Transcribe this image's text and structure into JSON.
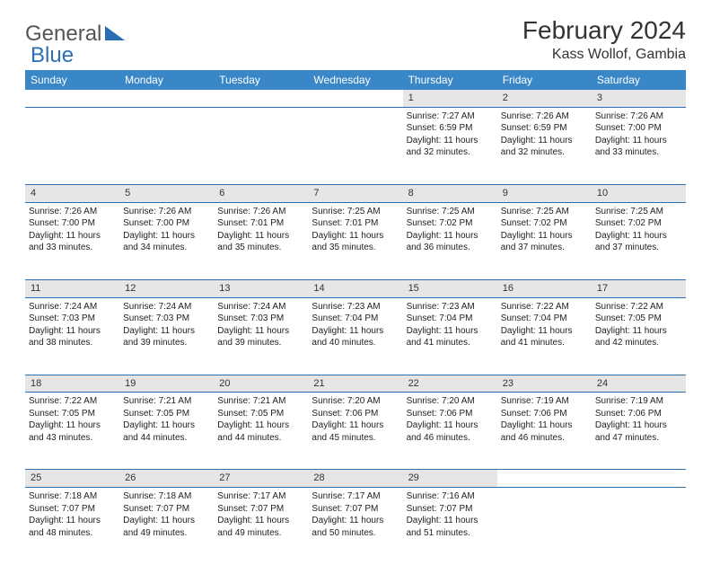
{
  "header": {
    "logo_general": "General",
    "logo_blue": "Blue",
    "month_title": "February 2024",
    "location": "Kass Wollof, Gambia"
  },
  "colors": {
    "header_bg": "#3a87c8",
    "header_text": "#ffffff",
    "daynum_bg": "#e6e6e6",
    "row_border": "#2a6fb5",
    "text": "#222222",
    "logo_gray": "#555555",
    "logo_blue": "#2a6fb5"
  },
  "weekdays": [
    "Sunday",
    "Monday",
    "Tuesday",
    "Wednesday",
    "Thursday",
    "Friday",
    "Saturday"
  ],
  "weeks": [
    {
      "nums": [
        "",
        "",
        "",
        "",
        "1",
        "2",
        "3"
      ],
      "cells": [
        null,
        null,
        null,
        null,
        {
          "sunrise": "Sunrise: 7:27 AM",
          "sunset": "Sunset: 6:59 PM",
          "day1": "Daylight: 11 hours",
          "day2": "and 32 minutes."
        },
        {
          "sunrise": "Sunrise: 7:26 AM",
          "sunset": "Sunset: 6:59 PM",
          "day1": "Daylight: 11 hours",
          "day2": "and 32 minutes."
        },
        {
          "sunrise": "Sunrise: 7:26 AM",
          "sunset": "Sunset: 7:00 PM",
          "day1": "Daylight: 11 hours",
          "day2": "and 33 minutes."
        }
      ]
    },
    {
      "nums": [
        "4",
        "5",
        "6",
        "7",
        "8",
        "9",
        "10"
      ],
      "cells": [
        {
          "sunrise": "Sunrise: 7:26 AM",
          "sunset": "Sunset: 7:00 PM",
          "day1": "Daylight: 11 hours",
          "day2": "and 33 minutes."
        },
        {
          "sunrise": "Sunrise: 7:26 AM",
          "sunset": "Sunset: 7:00 PM",
          "day1": "Daylight: 11 hours",
          "day2": "and 34 minutes."
        },
        {
          "sunrise": "Sunrise: 7:26 AM",
          "sunset": "Sunset: 7:01 PM",
          "day1": "Daylight: 11 hours",
          "day2": "and 35 minutes."
        },
        {
          "sunrise": "Sunrise: 7:25 AM",
          "sunset": "Sunset: 7:01 PM",
          "day1": "Daylight: 11 hours",
          "day2": "and 35 minutes."
        },
        {
          "sunrise": "Sunrise: 7:25 AM",
          "sunset": "Sunset: 7:02 PM",
          "day1": "Daylight: 11 hours",
          "day2": "and 36 minutes."
        },
        {
          "sunrise": "Sunrise: 7:25 AM",
          "sunset": "Sunset: 7:02 PM",
          "day1": "Daylight: 11 hours",
          "day2": "and 37 minutes."
        },
        {
          "sunrise": "Sunrise: 7:25 AM",
          "sunset": "Sunset: 7:02 PM",
          "day1": "Daylight: 11 hours",
          "day2": "and 37 minutes."
        }
      ]
    },
    {
      "nums": [
        "11",
        "12",
        "13",
        "14",
        "15",
        "16",
        "17"
      ],
      "cells": [
        {
          "sunrise": "Sunrise: 7:24 AM",
          "sunset": "Sunset: 7:03 PM",
          "day1": "Daylight: 11 hours",
          "day2": "and 38 minutes."
        },
        {
          "sunrise": "Sunrise: 7:24 AM",
          "sunset": "Sunset: 7:03 PM",
          "day1": "Daylight: 11 hours",
          "day2": "and 39 minutes."
        },
        {
          "sunrise": "Sunrise: 7:24 AM",
          "sunset": "Sunset: 7:03 PM",
          "day1": "Daylight: 11 hours",
          "day2": "and 39 minutes."
        },
        {
          "sunrise": "Sunrise: 7:23 AM",
          "sunset": "Sunset: 7:04 PM",
          "day1": "Daylight: 11 hours",
          "day2": "and 40 minutes."
        },
        {
          "sunrise": "Sunrise: 7:23 AM",
          "sunset": "Sunset: 7:04 PM",
          "day1": "Daylight: 11 hours",
          "day2": "and 41 minutes."
        },
        {
          "sunrise": "Sunrise: 7:22 AM",
          "sunset": "Sunset: 7:04 PM",
          "day1": "Daylight: 11 hours",
          "day2": "and 41 minutes."
        },
        {
          "sunrise": "Sunrise: 7:22 AM",
          "sunset": "Sunset: 7:05 PM",
          "day1": "Daylight: 11 hours",
          "day2": "and 42 minutes."
        }
      ]
    },
    {
      "nums": [
        "18",
        "19",
        "20",
        "21",
        "22",
        "23",
        "24"
      ],
      "cells": [
        {
          "sunrise": "Sunrise: 7:22 AM",
          "sunset": "Sunset: 7:05 PM",
          "day1": "Daylight: 11 hours",
          "day2": "and 43 minutes."
        },
        {
          "sunrise": "Sunrise: 7:21 AM",
          "sunset": "Sunset: 7:05 PM",
          "day1": "Daylight: 11 hours",
          "day2": "and 44 minutes."
        },
        {
          "sunrise": "Sunrise: 7:21 AM",
          "sunset": "Sunset: 7:05 PM",
          "day1": "Daylight: 11 hours",
          "day2": "and 44 minutes."
        },
        {
          "sunrise": "Sunrise: 7:20 AM",
          "sunset": "Sunset: 7:06 PM",
          "day1": "Daylight: 11 hours",
          "day2": "and 45 minutes."
        },
        {
          "sunrise": "Sunrise: 7:20 AM",
          "sunset": "Sunset: 7:06 PM",
          "day1": "Daylight: 11 hours",
          "day2": "and 46 minutes."
        },
        {
          "sunrise": "Sunrise: 7:19 AM",
          "sunset": "Sunset: 7:06 PM",
          "day1": "Daylight: 11 hours",
          "day2": "and 46 minutes."
        },
        {
          "sunrise": "Sunrise: 7:19 AM",
          "sunset": "Sunset: 7:06 PM",
          "day1": "Daylight: 11 hours",
          "day2": "and 47 minutes."
        }
      ]
    },
    {
      "nums": [
        "25",
        "26",
        "27",
        "28",
        "29",
        "",
        ""
      ],
      "cells": [
        {
          "sunrise": "Sunrise: 7:18 AM",
          "sunset": "Sunset: 7:07 PM",
          "day1": "Daylight: 11 hours",
          "day2": "and 48 minutes."
        },
        {
          "sunrise": "Sunrise: 7:18 AM",
          "sunset": "Sunset: 7:07 PM",
          "day1": "Daylight: 11 hours",
          "day2": "and 49 minutes."
        },
        {
          "sunrise": "Sunrise: 7:17 AM",
          "sunset": "Sunset: 7:07 PM",
          "day1": "Daylight: 11 hours",
          "day2": "and 49 minutes."
        },
        {
          "sunrise": "Sunrise: 7:17 AM",
          "sunset": "Sunset: 7:07 PM",
          "day1": "Daylight: 11 hours",
          "day2": "and 50 minutes."
        },
        {
          "sunrise": "Sunrise: 7:16 AM",
          "sunset": "Sunset: 7:07 PM",
          "day1": "Daylight: 11 hours",
          "day2": "and 51 minutes."
        },
        null,
        null
      ]
    }
  ]
}
